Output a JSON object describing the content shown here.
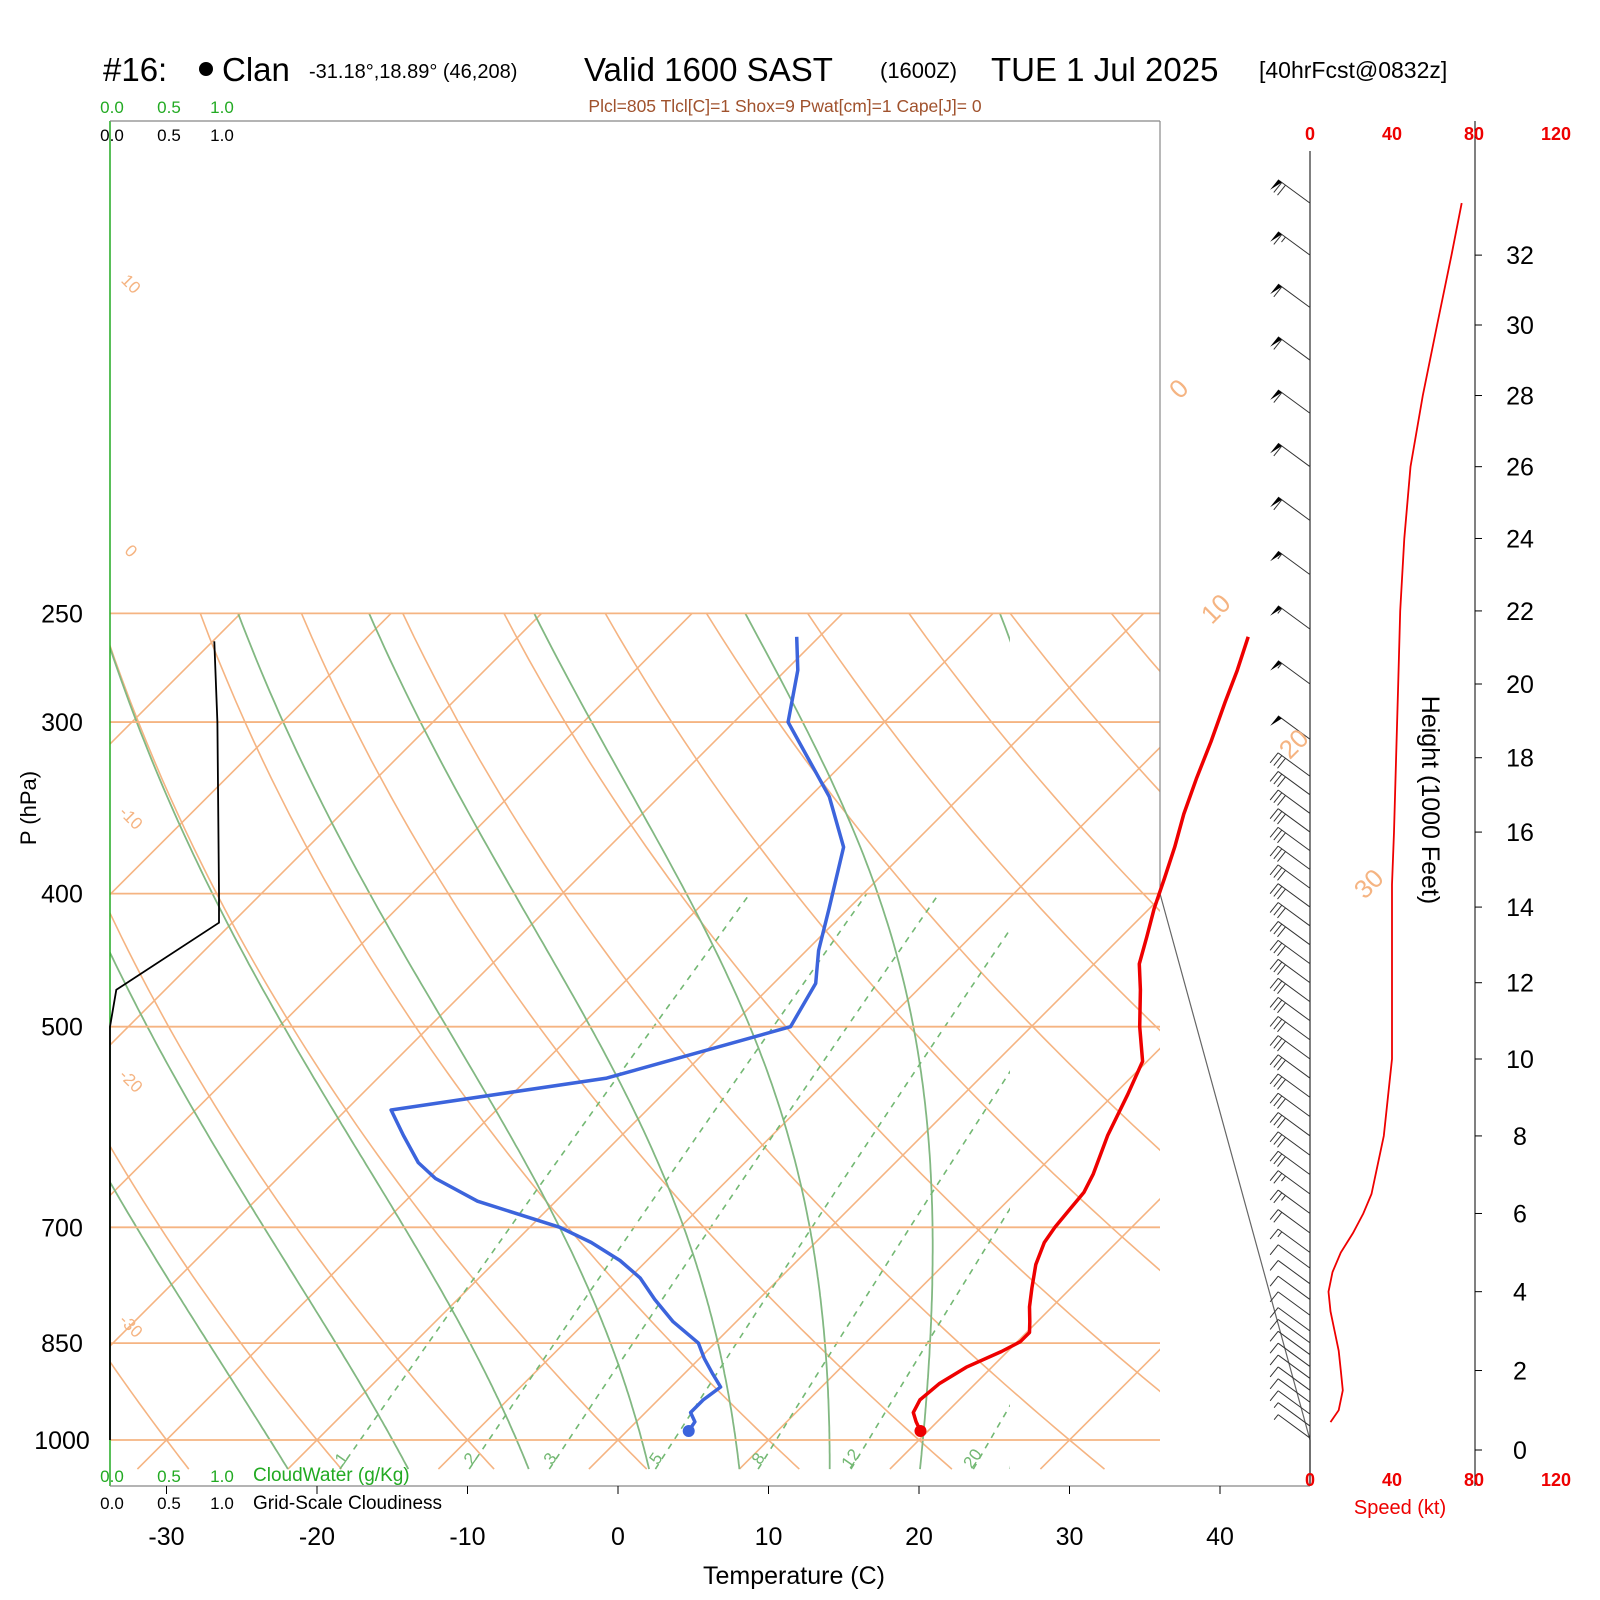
{
  "header": {
    "station_id": "#16:",
    "station_name": "Clan",
    "coords": "-31.18°,18.89° (46,208)",
    "valid": "Valid 1600 SAST",
    "zulu": "(1600Z)",
    "date": "TUE 1 Jul 2025",
    "forecast": "[40hrFcst@0832z]"
  },
  "params_line": "Plcl=805 Tlcl[C]=1 Shox=9 Pwat[cm]=1 Cape[J]= 0",
  "cloud_scale": {
    "green_ticks": [
      "0.0",
      "0.5",
      "1.0"
    ],
    "black_ticks": [
      "0.0",
      "0.5",
      "1.0"
    ],
    "green_label": "CloudWater (g/Kg)",
    "black_label": "Grid-Scale Cloudiness"
  },
  "axes": {
    "xlabel": "Temperature (C)",
    "ylabel": "P (hPa)",
    "height_label": "Height (1000 Feet)",
    "speed_label": "Speed (kt)",
    "x_ticks": [
      "-30",
      "-20",
      "-10",
      "0",
      "10",
      "20",
      "30",
      "40"
    ],
    "p_ticks": [
      "250",
      "300",
      "400",
      "500",
      "700",
      "850",
      "1000"
    ],
    "height_ticks": [
      "0",
      "2",
      "4",
      "6",
      "8",
      "10",
      "12",
      "14",
      "16",
      "18",
      "20",
      "22",
      "24",
      "26",
      "28",
      "30",
      "32"
    ],
    "speed_ticks": [
      "0",
      "40",
      "80",
      "120"
    ]
  },
  "isotherm_labels_left": [
    "10",
    "0",
    "-10",
    "-20",
    "-30"
  ],
  "isotherm_labels_right": [
    "0",
    "10",
    "20",
    "30"
  ],
  "mixing_ratio_labels": [
    "1",
    "2",
    "3",
    "5",
    "8",
    "12",
    "20"
  ],
  "colors": {
    "temperature": "#ee0000",
    "dewpoint": "#3c64dc",
    "isotherm": "#f5b482",
    "dry_adiabat": "#82b882",
    "mixing_ratio": "#73b873",
    "cloud": "#000000",
    "cloud_green": "#22aa22",
    "params": "#a0522d",
    "speed": "#ee0000"
  },
  "chart_data": {
    "type": "line",
    "title": "Valid 1600 SAST (1600Z) TUE 1 Jul 2025",
    "xlabel": "Temperature (C)",
    "ylabel": "P (hPa)",
    "x_range": [
      -34,
      36
    ],
    "p_range": [
      1050,
      250
    ],
    "y_scale": "log",
    "series": [
      {
        "name": "temperature",
        "points": [
          [
            985,
            19.5
          ],
          [
            970,
            18.6
          ],
          [
            955,
            17.8
          ],
          [
            935,
            17.4
          ],
          [
            910,
            17.6
          ],
          [
            885,
            18.3
          ],
          [
            862,
            19.6
          ],
          [
            848,
            20.2
          ],
          [
            835,
            20.2
          ],
          [
            820,
            19.5
          ],
          [
            800,
            18.5
          ],
          [
            775,
            17.4
          ],
          [
            745,
            16.1
          ],
          [
            718,
            15.2
          ],
          [
            700,
            14.9
          ],
          [
            680,
            14.7
          ],
          [
            660,
            14.5
          ],
          [
            640,
            13.9
          ],
          [
            600,
            12.3
          ],
          [
            560,
            10.9
          ],
          [
            530,
            9.7
          ],
          [
            500,
            7.2
          ],
          [
            470,
            4.8
          ],
          [
            450,
            3.0
          ],
          [
            430,
            1.7
          ],
          [
            410,
            0.3
          ],
          [
            390,
            -1.0
          ],
          [
            370,
            -2.4
          ],
          [
            350,
            -4.0
          ],
          [
            330,
            -5.5
          ],
          [
            310,
            -7.0
          ],
          [
            290,
            -8.7
          ],
          [
            275,
            -10.0
          ],
          [
            260,
            -11.5
          ]
        ]
      },
      {
        "name": "dewpoint",
        "points": [
          [
            985,
            4.1
          ],
          [
            970,
            3.9
          ],
          [
            955,
            3.0
          ],
          [
            935,
            3.0
          ],
          [
            915,
            3.3
          ],
          [
            895,
            1.9
          ],
          [
            872,
            0.3
          ],
          [
            850,
            -1.1
          ],
          [
            820,
            -4.2
          ],
          [
            790,
            -6.9
          ],
          [
            762,
            -9.3
          ],
          [
            740,
            -11.8
          ],
          [
            718,
            -14.9
          ],
          [
            700,
            -18.0
          ],
          [
            670,
            -25.2
          ],
          [
            645,
            -29.5
          ],
          [
            628,
            -31.7
          ],
          [
            600,
            -34.5
          ],
          [
            575,
            -37.0
          ],
          [
            545,
            -24.8
          ],
          [
            500,
            -16.0
          ],
          [
            465,
            -17.2
          ],
          [
            440,
            -19.2
          ],
          [
            410,
            -21.3
          ],
          [
            370,
            -24.4
          ],
          [
            340,
            -28.7
          ],
          [
            300,
            -36.4
          ],
          [
            275,
            -39.2
          ],
          [
            260,
            -41.5
          ]
        ]
      }
    ],
    "cloudiness": {
      "name": "Grid-Scale Cloudiness",
      "points": [
        [
          1000,
          0.0
        ],
        [
          500,
          0.0
        ],
        [
          470,
          0.04
        ],
        [
          420,
          0.69
        ],
        [
          400,
          0.69
        ],
        [
          300,
          0.68
        ],
        [
          262,
          0.66
        ]
      ]
    },
    "wind_speed_kt": {
      "name": "Speed (kt)",
      "height_kft": [
        0.7,
        1.0,
        1.5,
        2.0,
        2.5,
        3.0,
        3.5,
        4.0,
        4.5,
        5.0,
        5.5,
        6.0,
        6.5,
        7.0,
        8.0,
        9.0,
        10.0,
        11.0,
        12.0,
        13.0,
        14.0,
        14.6,
        16.0,
        18.0,
        20.0,
        22.0,
        24.0,
        26.0,
        28.0,
        30.0,
        32.0,
        33.5
      ],
      "speed": [
        10,
        14,
        16,
        15,
        14,
        12,
        10,
        9,
        11,
        15,
        21,
        26,
        30,
        32,
        36,
        38,
        40,
        40,
        40,
        40,
        40,
        40,
        41,
        42,
        43,
        44,
        46,
        49,
        55,
        62,
        69,
        74
      ]
    },
    "wind_barbs": {
      "name": "wind barbs",
      "levels_kft": [
        0.3,
        0.6,
        0.9,
        1.2,
        1.5,
        1.8,
        2.1,
        2.4,
        2.7,
        3.0,
        3.4,
        3.8,
        4.2,
        4.6,
        5.0,
        5.5,
        6.0,
        6.5,
        7.0,
        7.5,
        8.0,
        8.5,
        9.0,
        9.5,
        10.0,
        10.5,
        11.0,
        11.5,
        12.0,
        12.5,
        13.0,
        13.5,
        14.0,
        14.5,
        15.0,
        15.5,
        16.0,
        16.5,
        17.0,
        17.5,
        18.5,
        20.0,
        21.5,
        23.0,
        24.5,
        26.0,
        27.5,
        29.0,
        30.5,
        32.0,
        33.5
      ],
      "speed_kt": [
        5,
        8,
        10,
        12,
        12,
        12,
        12,
        12,
        12,
        10,
        10,
        10,
        10,
        10,
        15,
        20,
        25,
        25,
        30,
        30,
        30,
        30,
        30,
        30,
        30,
        30,
        30,
        30,
        30,
        30,
        30,
        30,
        30,
        30,
        30,
        30,
        30,
        30,
        30,
        30,
        50,
        55,
        55,
        55,
        60,
        60,
        60,
        60,
        60,
        65,
        70
      ]
    }
  }
}
